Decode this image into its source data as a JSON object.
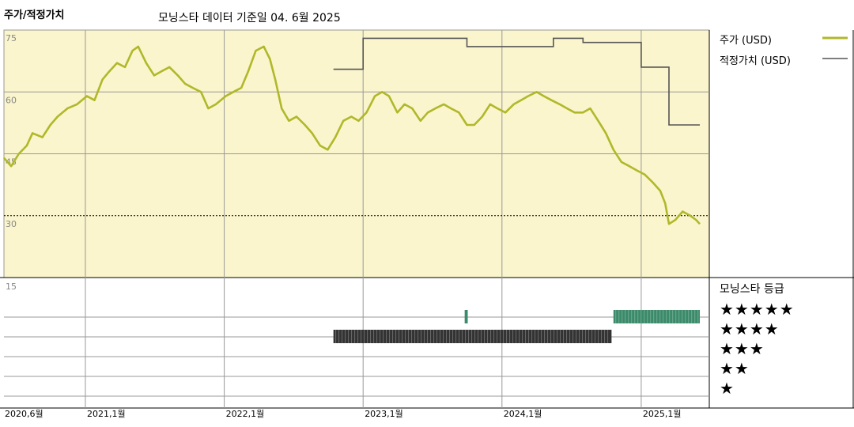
{
  "header": {
    "title": "주가/적정가치",
    "subtitle": "모닝스타 데이터 기준일 04. 6월 2025"
  },
  "legend": {
    "price_label": "주가 (USD)",
    "fair_value_label": "적정가치 (USD)",
    "rating_title": "모닝스타 등급"
  },
  "colors": {
    "price": "#b0b82a",
    "fair_value": "#555555",
    "band_dark": "#333333",
    "band_green": "#3b8a6a",
    "top_bg": "#faf5cc"
  },
  "stars": {
    "five": "★★★★★",
    "four": "★★★★",
    "three": "★★★",
    "two": "★★",
    "one": "★"
  },
  "chart_data": {
    "type": "line",
    "x_ticks": [
      "2020,6월",
      "2021,1월",
      "2022,1월",
      "2023,1월",
      "2024,1월",
      "2025,1월"
    ],
    "x_tick_dates": [
      "2020-06-01",
      "2021-01-01",
      "2022-01-01",
      "2023-01-01",
      "2024-01-01",
      "2025-01-01"
    ],
    "x_range": [
      "2020-06-01",
      "2025-06-04"
    ],
    "price_axis": {
      "ticks": [
        "75",
        "60",
        "45",
        "30"
      ],
      "tick_values": [
        75,
        60,
        45,
        30
      ],
      "ylim": [
        15,
        75
      ]
    },
    "rating_axis": {
      "ticks": [
        "15"
      ]
    },
    "grid": true,
    "series": [
      {
        "name": "주가 (USD)",
        "points": [
          [
            "2020-06-01",
            44
          ],
          [
            "2020-06-20",
            42
          ],
          [
            "2020-07-10",
            45
          ],
          [
            "2020-07-31",
            47
          ],
          [
            "2020-08-15",
            50
          ],
          [
            "2020-09-10",
            49
          ],
          [
            "2020-10-01",
            52
          ],
          [
            "2020-10-20",
            54
          ],
          [
            "2020-11-15",
            56
          ],
          [
            "2020-12-10",
            57
          ],
          [
            "2021-01-05",
            59
          ],
          [
            "2021-01-25",
            58
          ],
          [
            "2021-02-15",
            63
          ],
          [
            "2021-03-05",
            65
          ],
          [
            "2021-03-25",
            67
          ],
          [
            "2021-04-15",
            66
          ],
          [
            "2021-05-05",
            70
          ],
          [
            "2021-05-20",
            71
          ],
          [
            "2021-06-10",
            67
          ],
          [
            "2021-07-01",
            64
          ],
          [
            "2021-07-20",
            65
          ],
          [
            "2021-08-10",
            66
          ],
          [
            "2021-09-01",
            64
          ],
          [
            "2021-09-20",
            62
          ],
          [
            "2021-10-10",
            61
          ],
          [
            "2021-11-01",
            60
          ],
          [
            "2021-11-20",
            56
          ],
          [
            "2021-12-10",
            57
          ],
          [
            "2022-01-05",
            59
          ],
          [
            "2022-01-25",
            60
          ],
          [
            "2022-02-15",
            61
          ],
          [
            "2022-03-05",
            65
          ],
          [
            "2022-03-25",
            70
          ],
          [
            "2022-04-15",
            71
          ],
          [
            "2022-05-01",
            68
          ],
          [
            "2022-05-15",
            63
          ],
          [
            "2022-06-01",
            56
          ],
          [
            "2022-06-20",
            53
          ],
          [
            "2022-07-10",
            54
          ],
          [
            "2022-08-01",
            52
          ],
          [
            "2022-08-20",
            50
          ],
          [
            "2022-09-10",
            47
          ],
          [
            "2022-09-30",
            46
          ],
          [
            "2022-10-20",
            49
          ],
          [
            "2022-11-10",
            53
          ],
          [
            "2022-12-01",
            54
          ],
          [
            "2022-12-20",
            53
          ],
          [
            "2023-01-10",
            55
          ],
          [
            "2023-02-01",
            59
          ],
          [
            "2023-02-20",
            60
          ],
          [
            "2023-03-10",
            59
          ],
          [
            "2023-04-01",
            55
          ],
          [
            "2023-04-20",
            57
          ],
          [
            "2023-05-10",
            56
          ],
          [
            "2023-06-01",
            53
          ],
          [
            "2023-06-20",
            55
          ],
          [
            "2023-07-10",
            56
          ],
          [
            "2023-08-01",
            57
          ],
          [
            "2023-08-20",
            56
          ],
          [
            "2023-09-10",
            55
          ],
          [
            "2023-10-01",
            52
          ],
          [
            "2023-10-20",
            52
          ],
          [
            "2023-11-10",
            54
          ],
          [
            "2023-12-01",
            57
          ],
          [
            "2023-12-20",
            56
          ],
          [
            "2024-01-10",
            55
          ],
          [
            "2024-02-01",
            57
          ],
          [
            "2024-02-20",
            58
          ],
          [
            "2024-03-10",
            59
          ],
          [
            "2024-04-01",
            60
          ],
          [
            "2024-04-20",
            59
          ],
          [
            "2024-05-10",
            58
          ],
          [
            "2024-06-01",
            57
          ],
          [
            "2024-06-20",
            56
          ],
          [
            "2024-07-10",
            55
          ],
          [
            "2024-08-01",
            55
          ],
          [
            "2024-08-20",
            56
          ],
          [
            "2024-09-10",
            53
          ],
          [
            "2024-09-30",
            50
          ],
          [
            "2024-10-20",
            46
          ],
          [
            "2024-11-10",
            43
          ],
          [
            "2024-12-01",
            42
          ],
          [
            "2024-12-20",
            41
          ],
          [
            "2025-01-10",
            40
          ],
          [
            "2025-02-01",
            38
          ],
          [
            "2025-02-20",
            36
          ],
          [
            "2025-03-05",
            33
          ],
          [
            "2025-03-15",
            28
          ],
          [
            "2025-04-01",
            29
          ],
          [
            "2025-04-20",
            31
          ],
          [
            "2025-05-10",
            30
          ],
          [
            "2025-05-25",
            29
          ],
          [
            "2025-06-04",
            28
          ]
        ]
      },
      {
        "name": "적정가치 (USD)",
        "step": true,
        "points": [
          [
            "2022-10-15",
            65.5
          ],
          [
            "2023-01-01",
            65.5
          ],
          [
            "2023-01-01",
            73
          ],
          [
            "2023-10-01",
            73
          ],
          [
            "2023-10-01",
            71
          ],
          [
            "2024-05-15",
            71
          ],
          [
            "2024-05-15",
            73
          ],
          [
            "2024-08-01",
            73
          ],
          [
            "2024-08-01",
            72
          ],
          [
            "2025-01-01",
            72
          ],
          [
            "2025-01-01",
            66
          ],
          [
            "2025-03-15",
            66
          ],
          [
            "2025-03-15",
            52
          ],
          [
            "2025-06-04",
            52
          ]
        ]
      }
    ],
    "rating_bands": [
      {
        "stars": 4,
        "start": "2022-10-15",
        "end": "2024-10-15",
        "color": "dark"
      },
      {
        "stars": 5,
        "start": "2023-09-25",
        "end": "2023-10-03",
        "color": "green"
      },
      {
        "stars": 5,
        "start": "2024-10-20",
        "end": "2025-06-04",
        "color": "green"
      }
    ]
  }
}
